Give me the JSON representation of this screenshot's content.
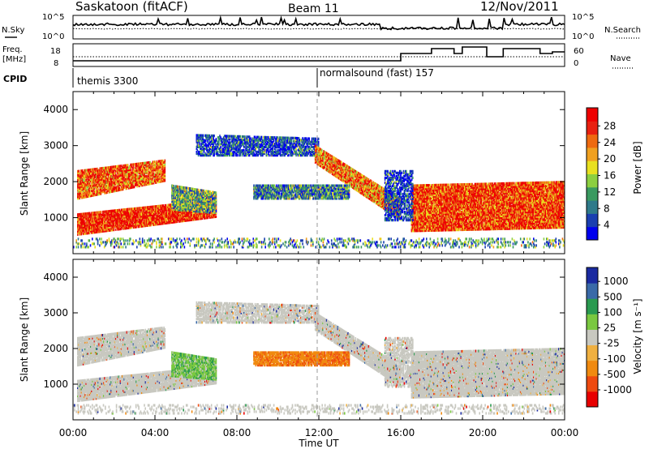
{
  "header": {
    "station": "Saskatoon (fitACF)",
    "beam": "Beam 11",
    "date": "12/Nov/2011"
  },
  "panel_top": {
    "left_label": "N.Sky",
    "right_label": "N.Search",
    "left_ticks": [
      "10^5",
      "10^0"
    ],
    "right_ticks": [
      "10^5",
      "10^0"
    ]
  },
  "panel_freq": {
    "left_label_1": "Freq.",
    "left_label_2": "[MHz]",
    "right_label": "Nave",
    "left_ticks": [
      "18",
      "8"
    ],
    "right_ticks": [
      "60",
      "0"
    ]
  },
  "cpid": {
    "label": "CPID",
    "mode1": "themis 3300",
    "mode2": "normalsound (fast) 157"
  },
  "colors": {
    "power": [
      "#0000ee",
      "#1a3fb0",
      "#2f7a8a",
      "#3a9a60",
      "#8ccf40",
      "#e8e020",
      "#f0a020",
      "#ee6a10",
      "#e82010",
      "#ee0000"
    ],
    "velocity": [
      "#e80000",
      "#ee4a10",
      "#f08a10",
      "#f0b040",
      "#c8c8c0",
      "#7ac840",
      "#2a9a50",
      "#3a6aa8",
      "#1a2aa0"
    ]
  },
  "chart_data": [
    {
      "type": "heatmap",
      "name": "power",
      "xlabel": "",
      "ylabel": "Slant Range [km]",
      "yticks": [
        "1000",
        "2000",
        "3000",
        "4000"
      ],
      "colorbar_label": "Power [dB]",
      "colorbar_ticks": [
        "4",
        "8",
        "12",
        "16",
        "20",
        "24",
        "28"
      ]
    },
    {
      "type": "heatmap",
      "name": "velocity",
      "xlabel": "Time UT",
      "ylabel": "Slant Range [km]",
      "yticks": [
        "1000",
        "2000",
        "3000",
        "4000"
      ],
      "xticks": [
        "00:00",
        "04:00",
        "08:00",
        "12:00",
        "16:00",
        "20:00",
        "00:00"
      ],
      "colorbar_label": "Velocity [m s⁻¹]",
      "colorbar_ticks": [
        "1000",
        "500",
        "100",
        "25",
        "-25",
        "-100",
        "-500",
        "-1000"
      ]
    }
  ]
}
